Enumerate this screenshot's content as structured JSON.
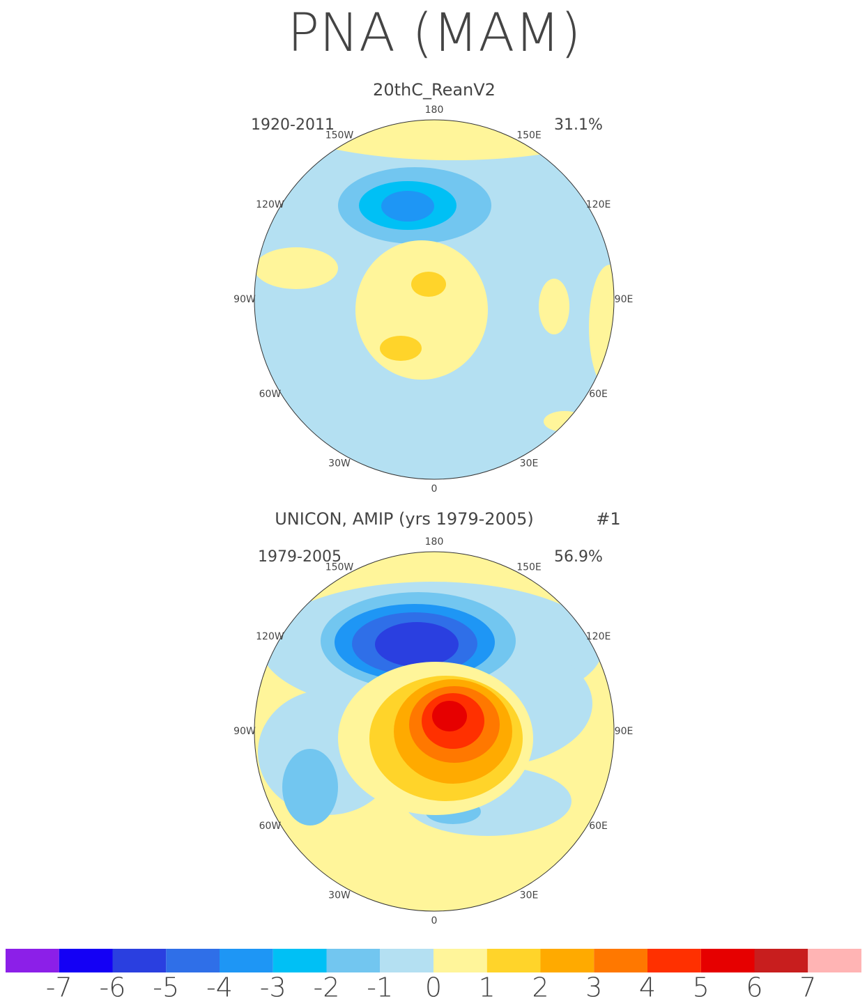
{
  "title": "PNA (MAM)",
  "panels": [
    {
      "title": "20thC_ReanV2",
      "period": "1920-2011",
      "variance": "31.1%"
    },
    {
      "title": "UNICON, AMIP (yrs 1979-2005)",
      "tag": "#1",
      "period": "1979-2005",
      "variance": "56.9%"
    }
  ],
  "longitude_labels": [
    "180",
    "150E",
    "120E",
    "90E",
    "60E",
    "30E",
    "0",
    "30W",
    "60W",
    "90W",
    "120W",
    "150W"
  ],
  "colorbar": {
    "colors": [
      "#8c1fe8",
      "#1400f5",
      "#2a3fe0",
      "#2f6fe8",
      "#1e96f5",
      "#00c0f5",
      "#72c6f0",
      "#b4e0f2",
      "#fff59a",
      "#ffd42a",
      "#ffaa00",
      "#ff7800",
      "#ff3000",
      "#e60000",
      "#c81e1e",
      "#ffb4b4"
    ],
    "ticks": [
      -7,
      -6,
      -5,
      -4,
      -3,
      -2,
      -1,
      0,
      1,
      2,
      3,
      4,
      5,
      6,
      7
    ]
  }
}
